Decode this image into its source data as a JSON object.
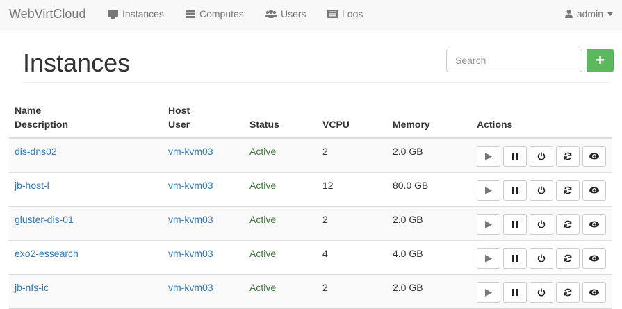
{
  "navbar": {
    "brand": "WebVirtCloud",
    "items": [
      {
        "label": "Instances",
        "icon": "monitor-icon"
      },
      {
        "label": "Computes",
        "icon": "server-icon"
      },
      {
        "label": "Users",
        "icon": "users-icon"
      },
      {
        "label": "Logs",
        "icon": "list-icon"
      }
    ],
    "user": "admin"
  },
  "page": {
    "title": "Instances",
    "search_placeholder": "Search",
    "add_label": "+"
  },
  "table": {
    "headers": {
      "name": "Name",
      "description": "Description",
      "host": "Host",
      "user": "User",
      "status": "Status",
      "vcpu": "VCPU",
      "memory": "Memory",
      "actions": "Actions"
    },
    "rows": [
      {
        "name": "dis-dns02",
        "host": "vm-kvm03",
        "status": "Active",
        "vcpu": "2",
        "memory": "2.0 GB"
      },
      {
        "name": "jb-host-l",
        "host": "vm-kvm03",
        "status": "Active",
        "vcpu": "12",
        "memory": "80.0 GB"
      },
      {
        "name": "gluster-dis-01",
        "host": "vm-kvm03",
        "status": "Active",
        "vcpu": "2",
        "memory": "2.0 GB"
      },
      {
        "name": "exo2-essearch",
        "host": "vm-kvm03",
        "status": "Active",
        "vcpu": "4",
        "memory": "4.0 GB"
      },
      {
        "name": "jb-nfs-ic",
        "host": "vm-kvm03",
        "status": "Active",
        "vcpu": "2",
        "memory": "2.0 GB"
      }
    ],
    "action_icons": [
      "play-icon",
      "pause-icon",
      "power-icon",
      "refresh-icon",
      "eye-icon"
    ]
  },
  "colors": {
    "link": "#337ab7",
    "active": "#3c763d",
    "add_button": "#5cb85c"
  }
}
